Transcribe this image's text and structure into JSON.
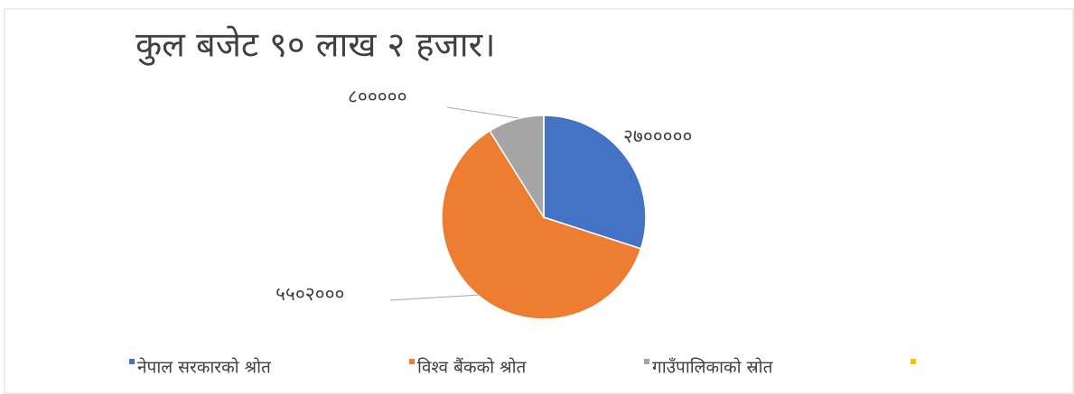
{
  "chart_data": {
    "type": "pie",
    "title": "कुल बजेट ९० लाख  २ हजार।",
    "categories": [
      "नेपाल सरकारको श्रोत",
      "विश्व बैंकको श्रोत",
      "गाउँपालिकाको स्रोत",
      null
    ],
    "values": [
      2700000,
      5502000,
      800000,
      0
    ],
    "value_labels": [
      "२७०००००",
      "५५०२०००",
      "८०००००",
      null
    ],
    "colors": [
      "#4472c4",
      "#ed7d31",
      "#a5a5a5",
      "#ffc000"
    ],
    "legend": "bottom"
  }
}
